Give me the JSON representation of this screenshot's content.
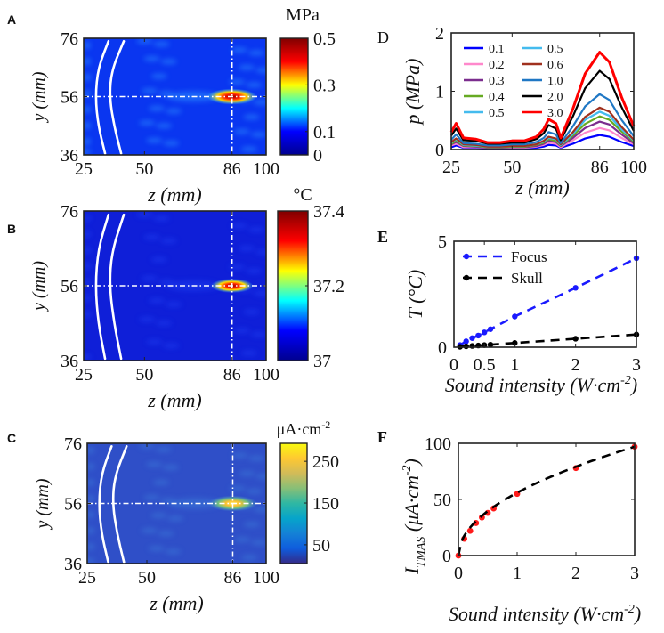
{
  "chart_data": [
    {
      "panel": "A",
      "type": "heatmap",
      "xlabel": "z (mm)",
      "ylabel": "y (mm)",
      "xticks": [
        "25",
        "50",
        "86",
        "100"
      ],
      "xtick_values": [
        25,
        50,
        86,
        100
      ],
      "xlim": [
        25,
        100
      ],
      "yticks": [
        "36",
        "56",
        "76"
      ],
      "ytick_values": [
        36,
        56,
        76
      ],
      "ylim": [
        36,
        76
      ],
      "colorbar": {
        "label": "MPa",
        "range": [
          0,
          0.5
        ],
        "ticks": [
          "0",
          "0.1",
          "0.3",
          "0.5"
        ],
        "tick_values": [
          0,
          0.1,
          0.3,
          0.5
        ],
        "colors": [
          "#00008f",
          "#0000ff",
          "#00ffff",
          "#ffff00",
          "#ff0000",
          "#800000"
        ]
      },
      "background": "#0a36f0",
      "ripple": "#2a8cff",
      "focus": {
        "z": 86,
        "y": 56,
        "colors": [
          "#8a0000",
          "#ff1a00",
          "#ffd000",
          "#30e0ff"
        ]
      },
      "crosshair": {
        "z": 86,
        "y": 56
      },
      "skull": [
        [
          [
            35.2,
            75
          ],
          [
            31,
            66
          ],
          [
            29.8,
            56
          ],
          [
            31,
            46
          ],
          [
            33.8,
            36.5
          ]
        ],
        [
          [
            41.5,
            75
          ],
          [
            36.5,
            65
          ],
          [
            35.6,
            56
          ],
          [
            37.5,
            46
          ],
          [
            40.4,
            36.5
          ]
        ]
      ]
    },
    {
      "panel": "B",
      "type": "heatmap",
      "xlabel": "z (mm)",
      "ylabel": "y (mm)",
      "xticks": [
        "25",
        "50",
        "86",
        "100"
      ],
      "xtick_values": [
        25,
        50,
        86,
        100
      ],
      "xlim": [
        25,
        100
      ],
      "yticks": [
        "36",
        "56",
        "76"
      ],
      "ytick_values": [
        36,
        56,
        76
      ],
      "ylim": [
        36,
        76
      ],
      "colorbar": {
        "label": "°C",
        "range": [
          37,
          37.4
        ],
        "ticks": [
          "37",
          "37.2",
          "37.4"
        ],
        "tick_values": [
          37,
          37.2,
          37.4
        ],
        "colors": [
          "#00008f",
          "#0000ff",
          "#00ffff",
          "#ffff00",
          "#ff0000",
          "#800000"
        ]
      },
      "background": "#0f1fd8",
      "ripple": "#1a3cf0",
      "focus": {
        "z": 86,
        "y": 56,
        "colors": [
          "#8a0000",
          "#ff2000",
          "#ffe000",
          "#30d0ff"
        ]
      },
      "crosshair": {
        "z": 86,
        "y": 56
      },
      "skull": [
        [
          [
            35.2,
            75
          ],
          [
            31,
            66
          ],
          [
            29.8,
            56
          ],
          [
            31,
            46
          ],
          [
            33.8,
            36.5
          ]
        ],
        [
          [
            41.5,
            75
          ],
          [
            36.5,
            65
          ],
          [
            35.6,
            56
          ],
          [
            37.5,
            46
          ],
          [
            40.4,
            36.5
          ]
        ]
      ]
    },
    {
      "panel": "C",
      "type": "heatmap",
      "xlabel": "z (mm)",
      "ylabel": "y (mm)",
      "xticks": [
        "25",
        "50",
        "86",
        "100"
      ],
      "xtick_values": [
        25,
        50,
        86,
        100
      ],
      "xlim": [
        25,
        100
      ],
      "yticks": [
        "36",
        "56",
        "76"
      ],
      "ytick_values": [
        36,
        56,
        76
      ],
      "ylim": [
        36,
        76
      ],
      "colorbar": {
        "label": "μA·cm-2",
        "range": [
          5,
          293
        ],
        "ticks": [
          "50",
          "150",
          "250"
        ],
        "tick_values": [
          50,
          150,
          250
        ],
        "colors": [
          "#352a87",
          "#0f5cdd",
          "#1481d6",
          "#06a4ca",
          "#2eb7a4",
          "#87bf77",
          "#d1bb59",
          "#fec832",
          "#f9fb0e"
        ]
      },
      "background": "#2f4fc8",
      "ripple": "#3a78d8",
      "focus": {
        "z": 86,
        "y": 56,
        "colors": [
          "#fff060",
          "#fbc030",
          "#70c080",
          "#3a80d8"
        ]
      },
      "crosshair": {
        "z": 86,
        "y": 56
      },
      "skull": [
        [
          [
            35.2,
            75
          ],
          [
            31,
            66
          ],
          [
            29.8,
            56
          ],
          [
            31,
            46
          ],
          [
            33.8,
            36.5
          ]
        ],
        [
          [
            41.5,
            75
          ],
          [
            36.5,
            65
          ],
          [
            35.6,
            56
          ],
          [
            37.5,
            46
          ],
          [
            40.4,
            36.5
          ]
        ]
      ]
    },
    {
      "panel": "D",
      "type": "line",
      "xlabel": "z (mm)",
      "ylabel": "p (MPa)",
      "xlim": [
        25,
        100
      ],
      "ylim": [
        0,
        2
      ],
      "xticks": [
        "25",
        "50",
        "86",
        "100"
      ],
      "xtick_values": [
        25,
        50,
        86,
        100
      ],
      "yticks": [
        "0",
        "1",
        "2"
      ],
      "ytick_values": [
        0,
        1,
        2
      ],
      "legend_position": "top-left",
      "x": [
        25,
        27,
        30,
        35,
        40,
        45,
        50,
        55,
        60,
        63,
        65,
        68,
        70,
        75,
        80,
        86,
        90,
        95,
        100
      ],
      "series": [
        {
          "name": "0.1",
          "color": "#0000ff",
          "values": [
            0.04,
            0.07,
            0.03,
            0.03,
            0.02,
            0.02,
            0.02,
            0.02,
            0.03,
            0.05,
            0.08,
            0.07,
            0.03,
            0.1,
            0.19,
            0.25,
            0.22,
            0.13,
            0.06
          ]
        },
        {
          "name": "0.2",
          "color": "#ff88cc",
          "values": [
            0.07,
            0.1,
            0.04,
            0.04,
            0.03,
            0.03,
            0.03,
            0.03,
            0.05,
            0.08,
            0.12,
            0.1,
            0.04,
            0.16,
            0.29,
            0.37,
            0.33,
            0.2,
            0.09
          ]
        },
        {
          "name": "0.3",
          "color": "#7b2d8e",
          "values": [
            0.09,
            0.13,
            0.06,
            0.05,
            0.03,
            0.03,
            0.04,
            0.04,
            0.06,
            0.1,
            0.15,
            0.13,
            0.06,
            0.2,
            0.37,
            0.48,
            0.43,
            0.26,
            0.11
          ]
        },
        {
          "name": "0.4",
          "color": "#66aa22",
          "values": [
            0.1,
            0.15,
            0.07,
            0.06,
            0.04,
            0.04,
            0.05,
            0.05,
            0.08,
            0.12,
            0.18,
            0.15,
            0.07,
            0.24,
            0.44,
            0.57,
            0.51,
            0.31,
            0.14
          ]
        },
        {
          "name": "0.5",
          "color": "#44bbee",
          "values": [
            0.12,
            0.18,
            0.08,
            0.07,
            0.05,
            0.05,
            0.06,
            0.06,
            0.09,
            0.14,
            0.2,
            0.18,
            0.08,
            0.27,
            0.51,
            0.65,
            0.58,
            0.35,
            0.16
          ]
        },
        {
          "name": "0.5",
          "color": "#44bbee",
          "values": [
            0.12,
            0.18,
            0.08,
            0.07,
            0.05,
            0.05,
            0.06,
            0.06,
            0.09,
            0.14,
            0.2,
            0.18,
            0.08,
            0.27,
            0.51,
            0.65,
            0.58,
            0.35,
            0.16
          ]
        },
        {
          "name": "0.6",
          "color": "#a0301e",
          "values": [
            0.13,
            0.19,
            0.09,
            0.08,
            0.05,
            0.05,
            0.06,
            0.06,
            0.09,
            0.15,
            0.22,
            0.19,
            0.09,
            0.3,
            0.56,
            0.72,
            0.65,
            0.39,
            0.17
          ]
        },
        {
          "name": "1.0",
          "color": "#1f77c4",
          "values": [
            0.17,
            0.26,
            0.11,
            0.1,
            0.07,
            0.07,
            0.09,
            0.09,
            0.13,
            0.2,
            0.3,
            0.26,
            0.11,
            0.4,
            0.74,
            0.95,
            0.85,
            0.51,
            0.23
          ]
        },
        {
          "name": "2.0",
          "color": "#000000",
          "values": [
            0.24,
            0.36,
            0.16,
            0.15,
            0.1,
            0.1,
            0.12,
            0.12,
            0.18,
            0.28,
            0.42,
            0.36,
            0.16,
            0.57,
            1.05,
            1.35,
            1.21,
            0.73,
            0.32
          ]
        },
        {
          "name": "3.0",
          "color": "#ff0000",
          "values": [
            0.3,
            0.45,
            0.2,
            0.18,
            0.12,
            0.12,
            0.15,
            0.15,
            0.22,
            0.35,
            0.52,
            0.45,
            0.2,
            0.7,
            1.3,
            1.67,
            1.5,
            0.9,
            0.4
          ]
        }
      ]
    },
    {
      "panel": "E",
      "type": "line",
      "xlabel": "Sound intensity (W·cm-2)",
      "ylabel": "T (°C)",
      "xlim": [
        0,
        3
      ],
      "ylim": [
        0,
        5
      ],
      "xticks": [
        "0",
        "0.5",
        "1",
        "2",
        "3"
      ],
      "xtick_values": [
        0,
        0.5,
        1,
        2,
        3
      ],
      "yticks": [
        "0",
        "5"
      ],
      "ytick_values": [
        0,
        5
      ],
      "legend_position": "top-left",
      "series": [
        {
          "name": "Focus",
          "color": "#1a1aff",
          "x": [
            0.1,
            0.2,
            0.3,
            0.4,
            0.5,
            0.6,
            1,
            2,
            3
          ],
          "values": [
            0.1,
            0.28,
            0.43,
            0.55,
            0.7,
            0.85,
            1.45,
            2.8,
            4.2
          ]
        },
        {
          "name": "Skull",
          "color": "#000000",
          "x": [
            0.1,
            0.2,
            0.3,
            0.4,
            0.5,
            0.6,
            1,
            2,
            3
          ],
          "values": [
            0.02,
            0.04,
            0.06,
            0.08,
            0.1,
            0.12,
            0.2,
            0.4,
            0.6
          ]
        }
      ]
    },
    {
      "panel": "F",
      "type": "scatter",
      "xlabel": "Sound intensity (W·cm-2)",
      "ylabel": "I_TMAS (μA·cm-2)",
      "ylabel_main": "I",
      "ylabel_sub": "TMAS",
      "ylabel_unit": " (μA·cm",
      "ylabel_sup": "-2",
      "ylabel_close": ")",
      "xlim": [
        0,
        3
      ],
      "ylim": [
        0,
        100
      ],
      "xticks": [
        "0",
        "1",
        "2",
        "3"
      ],
      "xtick_values": [
        0,
        1,
        2,
        3
      ],
      "yticks": [
        "0",
        "50",
        "100"
      ],
      "ytick_values": [
        0,
        50,
        100
      ],
      "points_color": "#ff1a1a",
      "fit_color": "#000000",
      "x": [
        0,
        0.1,
        0.2,
        0.3,
        0.4,
        0.5,
        0.6,
        1,
        2,
        3
      ],
      "values": [
        0,
        15,
        22,
        29,
        34,
        38,
        42,
        55,
        78,
        97
      ],
      "fit": {
        "type": "power",
        "a": 56,
        "b": 0.5
      }
    }
  ],
  "panel_labels": [
    "A",
    "B",
    "C",
    "D",
    "E",
    "F"
  ],
  "xlabel_parts": {
    "main": "Sound intensity (W·cm",
    "sup": "-2",
    "close": ")"
  },
  "cbar_c_parts": {
    "main": "μA·cm",
    "sup": "-2"
  }
}
